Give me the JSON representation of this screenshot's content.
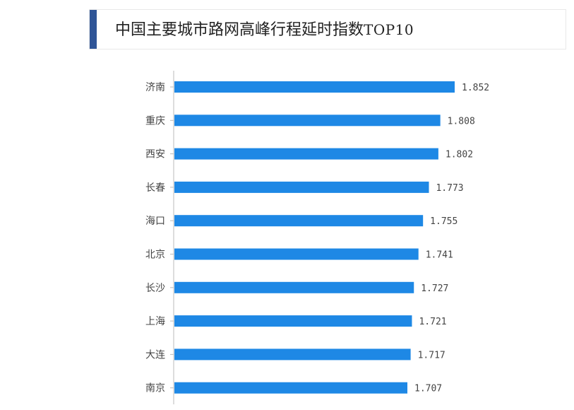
{
  "header": {
    "title_main": "中国主要城市路网高峰行程延时指数",
    "title_suffix": "TOP10"
  },
  "colors": {
    "bar": "#1e88e5",
    "accent": "#2f5597",
    "axis": "#bbbbbb"
  },
  "chart_data": {
    "type": "bar",
    "orientation": "horizontal",
    "title": "中国主要城市路网高峰行程延时指数TOP10",
    "categories": [
      "济南",
      "重庆",
      "西安",
      "长春",
      "海口",
      "北京",
      "长沙",
      "上海",
      "大连",
      "南京"
    ],
    "values": [
      1.852,
      1.808,
      1.802,
      1.773,
      1.755,
      1.741,
      1.727,
      1.721,
      1.717,
      1.707
    ],
    "value_labels": [
      "1.852",
      "1.808",
      "1.802",
      "1.773",
      "1.755",
      "1.741",
      "1.727",
      "1.721",
      "1.717",
      "1.707"
    ],
    "xlabel": "",
    "ylabel": "",
    "grid": false,
    "legend": false
  }
}
